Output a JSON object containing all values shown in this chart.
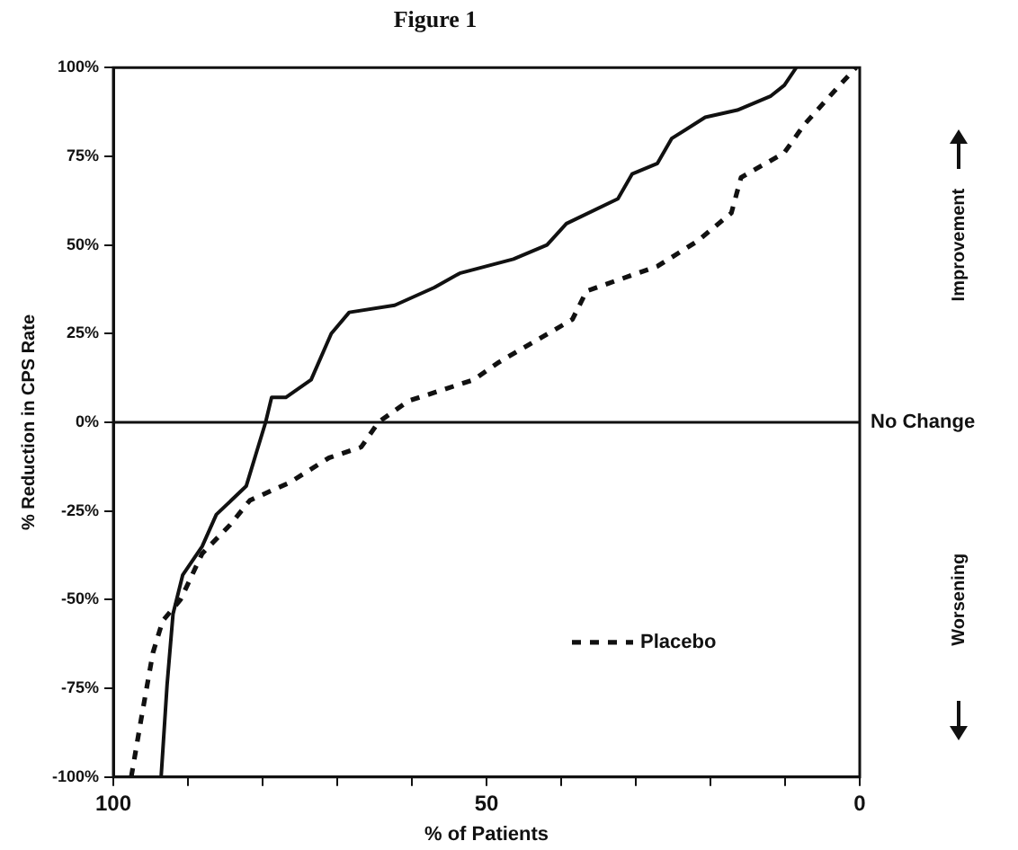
{
  "chart_data": {
    "type": "line",
    "title": "Figure 1",
    "xlabel": "% of Patients",
    "ylabel": "% Reduction in CPS Rate",
    "xlim": [
      100,
      0
    ],
    "xticks": [
      100,
      {
        "value": 90,
        "label": null
      },
      {
        "value": 80,
        "label": null
      },
      {
        "value": 70,
        "label": null
      },
      {
        "value": 60,
        "label": null
      },
      50,
      {
        "value": 40,
        "label": null
      },
      {
        "value": 30,
        "label": null
      },
      {
        "value": 20,
        "label": null
      },
      {
        "value": 10,
        "label": null
      },
      0
    ],
    "ylim": [
      -100,
      100
    ],
    "yticks": [
      {
        "value": -100,
        "label": "-100%"
      },
      {
        "value": -75,
        "label": "-75%"
      },
      {
        "value": -50,
        "label": "-50%"
      },
      {
        "value": -25,
        "label": "-25%"
      },
      {
        "value": 0,
        "label": "0%"
      },
      {
        "value": 25,
        "label": "25%"
      },
      {
        "value": 50,
        "label": "50%"
      },
      {
        "value": 75,
        "label": "75%"
      },
      {
        "value": 100,
        "label": "100%"
      }
    ],
    "series": [
      {
        "color": "#111111",
        "line_style": "solid",
        "x": [
          93.6,
          92.8,
          92,
          90.7,
          88.1,
          86.2,
          82.2,
          80.9,
          79.6,
          78.8,
          76.9,
          73.5,
          70.8,
          68.4,
          62.3,
          57,
          53.6,
          46.4,
          41.9,
          39.3,
          32.4,
          30.5,
          27.1,
          25.2,
          20.7,
          16.4,
          11.9,
          10.1,
          8.5
        ],
        "values": [
          -100,
          -74,
          -54,
          -43,
          -35,
          -26,
          -18,
          -9,
          0,
          7,
          7,
          12,
          25,
          31,
          33,
          38,
          42,
          46,
          50,
          56,
          63,
          70,
          73,
          80,
          86,
          88,
          92,
          95,
          100
        ]
      },
      {
        "name": "Placebo",
        "color": "#111111",
        "line_style": "dashed",
        "x": [
          97.6,
          96.3,
          94.7,
          93.4,
          91,
          88.1,
          84.4,
          81.7,
          76.4,
          71.1,
          66.8,
          64.5,
          60.5,
          51.7,
          48.3,
          38.5,
          36.6,
          27.1,
          21.8,
          17.2,
          15.9,
          10.1,
          7.4,
          2.7,
          0.5
        ],
        "values": [
          -100,
          -84,
          -65,
          -56,
          -50,
          -37,
          -29,
          -22,
          -17,
          -10,
          -7,
          0,
          6,
          12,
          17,
          29,
          37,
          44,
          51,
          59,
          69,
          76,
          84,
          95,
          100
        ]
      }
    ],
    "ref_lines": [
      {
        "axis": "y",
        "value": 0,
        "label": "No Change",
        "color": "#111111",
        "line_style": "solid"
      }
    ],
    "annotations": [
      "Improvement",
      "Worsening"
    ],
    "legend": "bottom right"
  }
}
